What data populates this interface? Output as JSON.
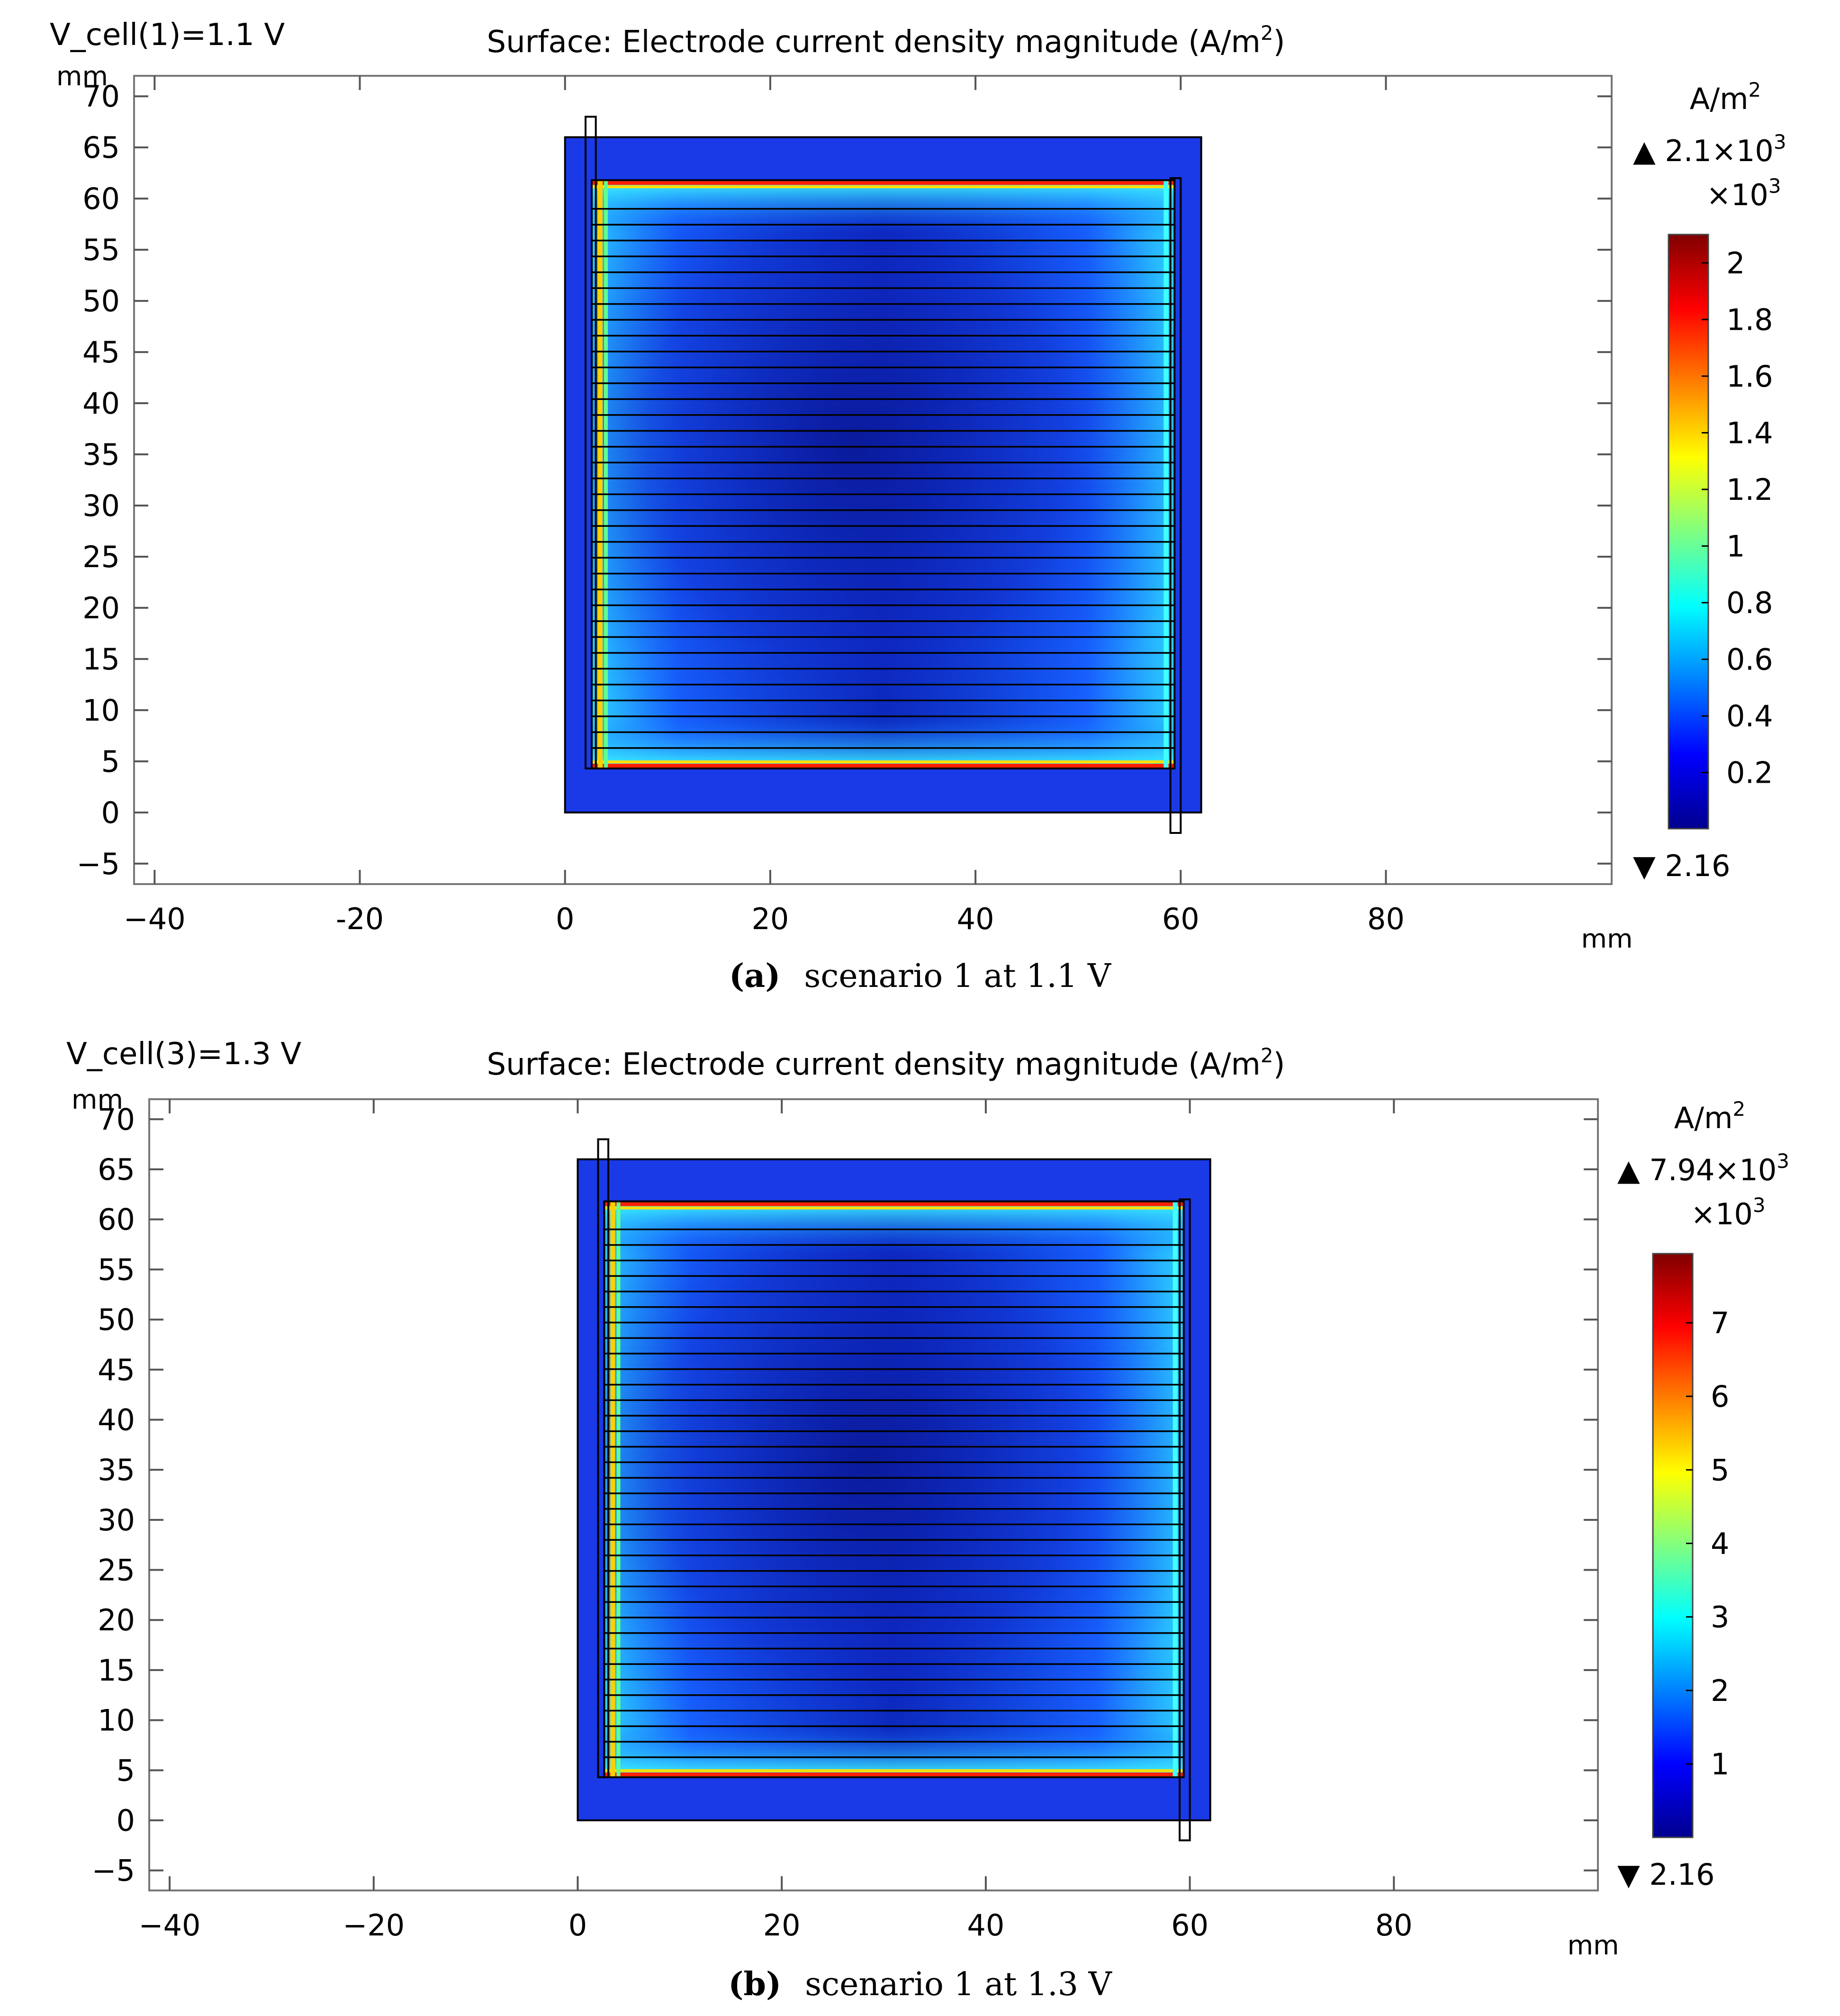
{
  "chart_data": [
    {
      "type": "heatmap",
      "panel_label": "(a)",
      "caption": "scenario 1 at 1.1 V",
      "state_label": "V_cell(1)=1.1 V",
      "title": "Surface: Electrode current density magnitude (A/m",
      "title_sup": "2",
      "title_end": ")",
      "x_unit": "mm",
      "y_unit": "mm",
      "xlim": [
        -42,
        102
      ],
      "ylim": [
        -7,
        72
      ],
      "x_ticks": [
        -40,
        -20,
        0,
        20,
        40,
        60,
        80
      ],
      "x_tick_labels": [
        "−40",
        "-20",
        "0",
        "20",
        "40",
        "60",
        "80"
      ],
      "y_ticks": [
        -5,
        0,
        5,
        10,
        15,
        20,
        25,
        30,
        35,
        40,
        45,
        50,
        55,
        60,
        65,
        70
      ],
      "y_tick_labels": [
        "−5",
        "0",
        "5",
        "10",
        "15",
        "20",
        "25",
        "30",
        "35",
        "40",
        "45",
        "50",
        "55",
        "60",
        "65",
        "70"
      ],
      "domain_mm": {
        "x": [
          0,
          62
        ],
        "y": [
          0,
          66
        ]
      },
      "colorbar": {
        "unit": "A/m",
        "unit_sup": "2",
        "max_marker": "▲ 2.1×10",
        "max_sup": "3",
        "multiplier": "×10",
        "multiplier_sup": "3",
        "min_marker": "▼ 2.16",
        "range": [
          0.002,
          2.1
        ],
        "ticks": [
          0.2,
          0.4,
          0.6,
          0.8,
          1,
          1.2,
          1.4,
          1.6,
          1.8,
          2
        ],
        "tick_labels": [
          "0.2",
          "0.4",
          "0.6",
          "0.8",
          "1",
          "1.2",
          "1.4",
          "1.6",
          "1.8",
          "2"
        ]
      },
      "colormap": [
        "#00008f",
        "#0000ff",
        "#0080ff",
        "#00ffff",
        "#80ff80",
        "#ffff00",
        "#ff8000",
        "#ff0000",
        "#800000"
      ]
    },
    {
      "type": "heatmap",
      "panel_label": "(b)",
      "caption": "scenario 1 at 1.3 V",
      "state_label": "V_cell(3)=1.3 V",
      "title": "Surface: Electrode current density magnitude (A/m",
      "title_sup": "2",
      "title_end": ")",
      "x_unit": "mm",
      "y_unit": "mm",
      "xlim": [
        -42,
        100
      ],
      "ylim": [
        -7,
        72
      ],
      "x_ticks": [
        -40,
        -20,
        0,
        20,
        40,
        60,
        80
      ],
      "x_tick_labels": [
        "−40",
        "−20",
        "0",
        "20",
        "40",
        "60",
        "80"
      ],
      "y_ticks": [
        -5,
        0,
        5,
        10,
        15,
        20,
        25,
        30,
        35,
        40,
        45,
        50,
        55,
        60,
        65,
        70
      ],
      "y_tick_labels": [
        "−5",
        "0",
        "5",
        "10",
        "15",
        "20",
        "25",
        "30",
        "35",
        "40",
        "45",
        "50",
        "55",
        "60",
        "65",
        "70"
      ],
      "domain_mm": {
        "x": [
          0,
          62
        ],
        "y": [
          0,
          66
        ]
      },
      "colorbar": {
        "unit": "A/m",
        "unit_sup": "2",
        "max_marker": "▲ 7.94×10",
        "max_sup": "3",
        "multiplier": "×10",
        "multiplier_sup": "3",
        "min_marker": "▼ 2.16",
        "range": [
          0.002,
          7.94
        ],
        "ticks": [
          1,
          2,
          3,
          4,
          5,
          6,
          7
        ],
        "tick_labels": [
          "1",
          "2",
          "3",
          "4",
          "5",
          "6",
          "7"
        ]
      },
      "colormap": [
        "#00008f",
        "#0000ff",
        "#0080ff",
        "#00ffff",
        "#80ff80",
        "#ffff00",
        "#ff8000",
        "#ff0000",
        "#800000"
      ]
    }
  ]
}
